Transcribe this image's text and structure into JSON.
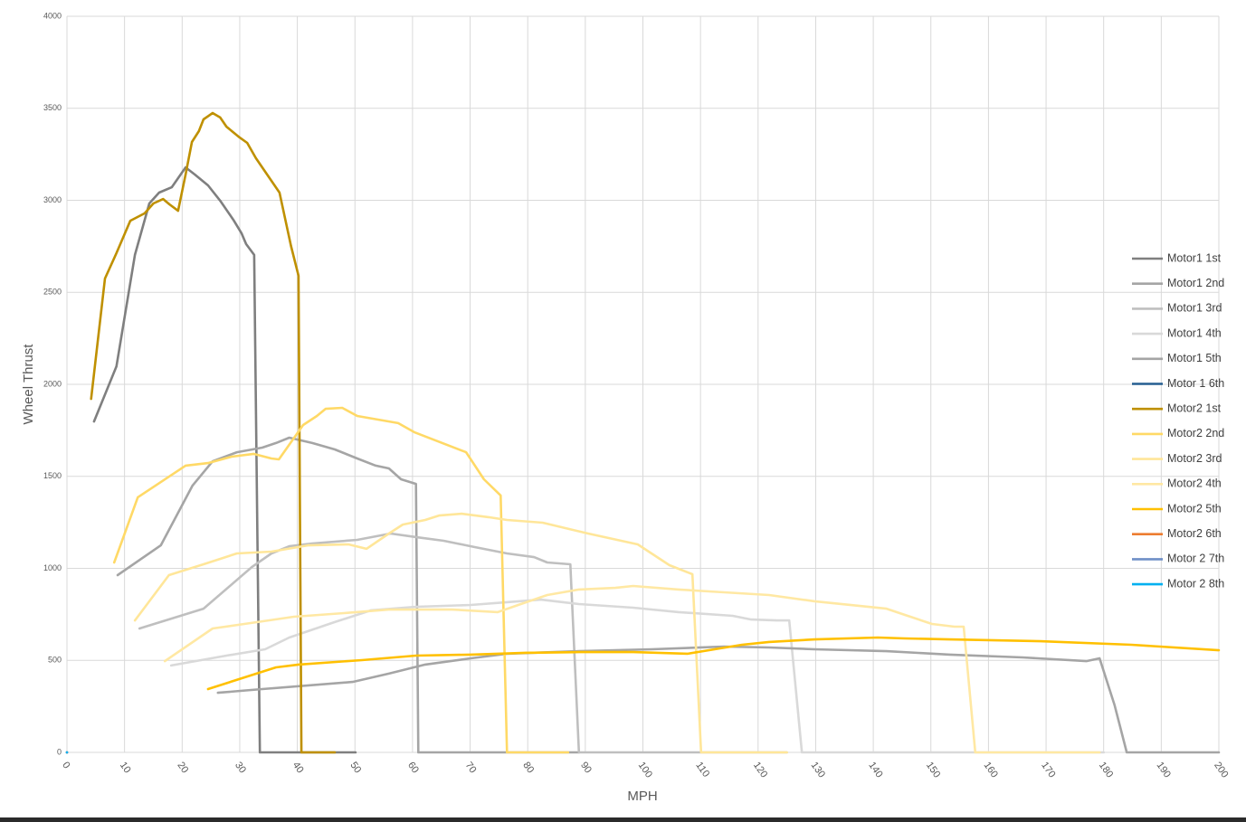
{
  "chart_data": {
    "type": "line",
    "x_label": "MPH",
    "y_label": "Wheel Thrust",
    "xlim": [
      0,
      200
    ],
    "ylim": [
      0,
      4000
    ],
    "xticks": [
      0,
      10,
      20,
      30,
      40,
      50,
      60,
      70,
      80,
      90,
      100,
      110,
      120,
      130,
      140,
      150,
      160,
      170,
      180,
      190,
      200
    ],
    "yticks": [
      0,
      500,
      1000,
      1500,
      2000,
      2500,
      3000,
      3500,
      4000
    ],
    "grid": true,
    "legend": "right",
    "series": [
      {
        "name": "Motor1 1st",
        "color": "#7f7f7f",
        "x": [
          4.7,
          8.6,
          11.8,
          14.3,
          16.0,
          18.2,
          20.6,
          22.2,
          24.5,
          26.6,
          28.9,
          30.3,
          31.1,
          32.5,
          33.5,
          50.1
        ],
        "values": [
          1798,
          2098,
          2703,
          2983,
          3042,
          3071,
          3179,
          3140,
          3081,
          2998,
          2894,
          2821,
          2762,
          2703,
          0,
          0
        ]
      },
      {
        "name": "Motor1 2nd",
        "color": "#a5a5a5",
        "x": [
          8.8,
          16.3,
          21.8,
          25.3,
          29.5,
          33.9,
          36.3,
          38.6,
          42.6,
          46.5,
          50.4,
          53.6,
          55.9,
          58.0,
          60.6,
          61.0,
          88.9
        ],
        "values": [
          963,
          1125,
          1450,
          1582,
          1631,
          1656,
          1681,
          1710,
          1681,
          1646,
          1597,
          1558,
          1543,
          1484,
          1459,
          0,
          0
        ]
      },
      {
        "name": "Motor1 3rd",
        "color": "#bfbfbf",
        "x": [
          12.6,
          23.7,
          32.1,
          35.5,
          38.6,
          42.6,
          50.4,
          56.2,
          60.6,
          65.4,
          70.9,
          76.4,
          81.1,
          83.4,
          87.4,
          88.9,
          125.0
        ],
        "values": [
          673,
          781,
          1007,
          1081,
          1120,
          1135,
          1155,
          1189,
          1170,
          1150,
          1115,
          1081,
          1061,
          1032,
          1022,
          0,
          0
        ]
      },
      {
        "name": "Motor1 4th",
        "color": "#d9d9d9",
        "x": [
          18.1,
          27.7,
          34.4,
          38.6,
          46.5,
          52.8,
          60.6,
          70.1,
          76.4,
          82.3,
          88.9,
          98.3,
          106.2,
          115.6,
          118.8,
          123.2,
          125.4,
          127.6,
          180.0
        ],
        "values": [
          472,
          526,
          560,
          624,
          708,
          772,
          791,
          801,
          816,
          830,
          806,
          786,
          762,
          742,
          722,
          717,
          717,
          0,
          0
        ]
      },
      {
        "name": "Motor1 5th",
        "color": "#a5a5a5",
        "x": [
          26.2,
          33.9,
          49.6,
          55.9,
          62.2,
          70.1,
          76.4,
          88.9,
          101.5,
          114.1,
          121.9,
          129.8,
          142.3,
          153.3,
          165.9,
          177.0,
          179.3,
          181.9,
          184.0,
          200.0
        ],
        "values": [
          324,
          344,
          383,
          428,
          477,
          511,
          536,
          550,
          560,
          575,
          570,
          560,
          550,
          531,
          516,
          496,
          511,
          256,
          0,
          0
        ]
      },
      {
        "name": "Motor 1 6th",
        "color": "#255e91",
        "x": [
          0
        ],
        "values": [
          0
        ]
      },
      {
        "name": "Motor2 1st",
        "color": "#bf9000",
        "x": [
          4.2,
          6.6,
          8.6,
          11.0,
          13.5,
          15.0,
          16.7,
          17.8,
          19.3,
          20.6,
          21.7,
          22.9,
          23.7,
          25.3,
          26.6,
          27.7,
          30.0,
          31.3,
          32.8,
          36.9,
          38.9,
          40.2,
          40.7,
          46.5
        ],
        "values": [
          1921,
          2575,
          2713,
          2889,
          2929,
          2983,
          3007,
          2978,
          2943,
          3140,
          3317,
          3376,
          3440,
          3474,
          3450,
          3400,
          3341,
          3312,
          3229,
          3042,
          2752,
          2590,
          0,
          0
        ]
      },
      {
        "name": "Motor2 2nd",
        "color": "#ffd966",
        "x": [
          8.2,
          12.3,
          20.6,
          24.5,
          28.6,
          32.4,
          35.5,
          36.8,
          41.0,
          43.4,
          44.9,
          47.8,
          50.4,
          57.5,
          60.3,
          69.3,
          72.4,
          75.3,
          76.4,
          87.0
        ],
        "values": [
          1032,
          1386,
          1558,
          1572,
          1607,
          1622,
          1597,
          1592,
          1779,
          1828,
          1867,
          1872,
          1828,
          1789,
          1740,
          1631,
          1484,
          1396,
          0,
          0
        ]
      },
      {
        "name": "Motor2 3rd",
        "color": "#ffe699",
        "x": [
          11.8,
          17.7,
          23.7,
          29.5,
          35.5,
          41.8,
          48.9,
          52.0,
          55.9,
          58.3,
          62.2,
          64.6,
          68.5,
          73.2,
          76.4,
          82.6,
          90.5,
          99.1,
          104.6,
          108.6,
          110.1,
          125.0
        ],
        "values": [
          717,
          963,
          1022,
          1081,
          1091,
          1125,
          1130,
          1106,
          1189,
          1238,
          1263,
          1287,
          1297,
          1278,
          1263,
          1248,
          1189,
          1130,
          1017,
          968,
          0,
          0
        ]
      },
      {
        "name": "Motor2 4th",
        "color": "#ffe8a3",
        "x": [
          17.0,
          25.3,
          30.8,
          39.4,
          48.1,
          55.9,
          66.9,
          74.8,
          78.8,
          83.4,
          88.9,
          95.2,
          98.3,
          106.2,
          114.1,
          121.9,
          129.8,
          142.3,
          145.5,
          150.2,
          154.1,
          155.7,
          157.7,
          179.3
        ],
        "values": [
          496,
          673,
          698,
          737,
          757,
          776,
          776,
          762,
          806,
          855,
          885,
          894,
          904,
          885,
          870,
          855,
          821,
          781,
          747,
          698,
          683,
          683,
          0,
          0
        ]
      },
      {
        "name": "Motor2 5th",
        "color": "#ffc000",
        "x": [
          24.5,
          36.3,
          40.2,
          51.2,
          60.6,
          70.1,
          79.5,
          88.9,
          98.3,
          107.8,
          117.2,
          121.9,
          129.8,
          140.8,
          145.5,
          153.3,
          169.0,
          184.8,
          200.0
        ],
        "values": [
          344,
          462,
          477,
          501,
          526,
          531,
          541,
          545,
          545,
          536,
          585,
          600,
          614,
          624,
          619,
          614,
          604,
          585,
          555
        ]
      },
      {
        "name": "Motor2 6th",
        "color": "#ed7d31",
        "x": [
          0
        ],
        "values": [
          0
        ]
      },
      {
        "name": "Motor 2 7th",
        "color": "#6f8fc7",
        "x": [
          0
        ],
        "values": [
          0
        ]
      },
      {
        "name": "Motor 2 8th",
        "color": "#00b0f0",
        "x": [
          0
        ],
        "values": [
          0
        ]
      }
    ]
  }
}
